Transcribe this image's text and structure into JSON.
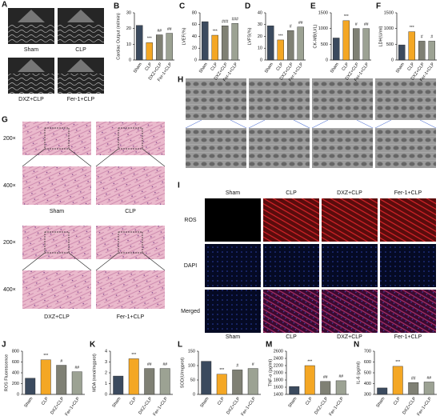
{
  "panels": {
    "A": {
      "label": "A",
      "captions": [
        "Sham",
        "CLP",
        "DXZ+CLP",
        "Fer-1+CLP"
      ]
    },
    "G": {
      "label": "G",
      "magnifications": [
        "200×",
        "400×"
      ],
      "captions": [
        "Sham",
        "CLP",
        "DXZ+CLP",
        "Fer-1+CLP"
      ]
    },
    "H": {
      "label": "H"
    },
    "I": {
      "label": "I",
      "columns": [
        "Sham",
        "CLP",
        "DXZ+CLP",
        "Fer-1+CLP"
      ],
      "rows": [
        "ROS",
        "DAPI",
        "Merged"
      ],
      "captions": [
        "Sham",
        "CLP",
        "DXZ+CLP",
        "Fer-1+CLP"
      ]
    }
  },
  "chart_data": [
    {
      "type": "bar",
      "label": "B",
      "ylabel": "Cardiac Output (ml/min)",
      "categories": [
        "Sham",
        "CLP",
        "DXZ+CLP",
        "Fer-1+CLP"
      ],
      "values": [
        22,
        11,
        16,
        17
      ],
      "annotations": [
        null,
        "***",
        "##",
        "##"
      ],
      "colors": [
        "#3b4a5e",
        "#f4a724",
        "#7f8074",
        "#9ca293"
      ],
      "ylim": [
        0,
        30
      ],
      "yticks": [
        0,
        10,
        20,
        30
      ]
    },
    {
      "type": "bar",
      "label": "C",
      "ylabel": "LVEF(%)",
      "categories": [
        "Sham",
        "CLP",
        "DXZ+CLP",
        "Fer-1+CLP"
      ],
      "values": [
        65,
        42,
        58,
        62
      ],
      "annotations": [
        null,
        "***",
        "###",
        "###"
      ],
      "colors": [
        "#3b4a5e",
        "#f4a724",
        "#7f8074",
        "#9ca293"
      ],
      "ylim": [
        0,
        80
      ],
      "yticks": [
        0,
        20,
        40,
        60,
        80
      ]
    },
    {
      "type": "bar",
      "label": "D",
      "ylabel": "LVFS(%)",
      "categories": [
        "Sham",
        "CLP",
        "DXZ+CLP",
        "Fer-1+CLP"
      ],
      "values": [
        29,
        17,
        25,
        28
      ],
      "annotations": [
        null,
        "***",
        "#",
        "##"
      ],
      "colors": [
        "#3b4a5e",
        "#f4a724",
        "#7f8074",
        "#9ca293"
      ],
      "ylim": [
        0,
        40
      ],
      "yticks": [
        0,
        10,
        20,
        30,
        40
      ]
    },
    {
      "type": "bar",
      "label": "E",
      "ylabel": "CK-MB(U/L)",
      "categories": [
        "Sham",
        "CLP",
        "DXZ+CLP",
        "Fer-1+CLP"
      ],
      "values": [
        700,
        1250,
        1000,
        1000
      ],
      "annotations": [
        null,
        "***",
        "#",
        "##"
      ],
      "colors": [
        "#3b4a5e",
        "#f4a724",
        "#7f8074",
        "#9ca293"
      ],
      "ylim": [
        0,
        1500
      ],
      "yticks": [
        0,
        500,
        1000,
        1500
      ]
    },
    {
      "type": "bar",
      "label": "F",
      "ylabel": "LDH(U/ml)",
      "categories": [
        "Sham",
        "CLP",
        "DXZ+CLP",
        "Fer-1+CLP"
      ],
      "values": [
        480,
        900,
        600,
        600
      ],
      "annotations": [
        null,
        "***",
        "#",
        "#"
      ],
      "colors": [
        "#3b4a5e",
        "#f4a724",
        "#7f8074",
        "#9ca293"
      ],
      "ylim": [
        0,
        1500
      ],
      "yticks": [
        0,
        500,
        1000,
        1500
      ]
    },
    {
      "type": "bar",
      "label": "J",
      "ylabel": "ROS Fluorescence",
      "categories": [
        "Sham",
        "CLP",
        "DXZ+CLP",
        "Fer-1+CLP"
      ],
      "values": [
        300,
        640,
        540,
        420
      ],
      "annotations": [
        null,
        "***",
        "#",
        "##"
      ],
      "colors": [
        "#3b4a5e",
        "#f4a724",
        "#7f8074",
        "#9ca293"
      ],
      "ylim": [
        0,
        800
      ],
      "yticks": [
        0,
        200,
        400,
        600,
        800
      ]
    },
    {
      "type": "bar",
      "label": "K",
      "ylabel": "MDA (nmol/mgprot)",
      "categories": [
        "Sham",
        "CLP",
        "DXZ+CLP",
        "Fer-1+CLP"
      ],
      "values": [
        1.7,
        3.3,
        2.4,
        2.4
      ],
      "annotations": [
        null,
        "***",
        "##",
        "##"
      ],
      "colors": [
        "#3b4a5e",
        "#f4a724",
        "#7f8074",
        "#9ca293"
      ],
      "ylim": [
        0,
        4
      ],
      "yticks": [
        0,
        1,
        2,
        3,
        4
      ]
    },
    {
      "type": "bar",
      "label": "L",
      "ylabel": "SOD(U/mgprot)",
      "categories": [
        "Sham",
        "CLP",
        "DXZ+CLP",
        "Fer-1+CLP"
      ],
      "values": [
        115,
        70,
        85,
        90
      ],
      "annotations": [
        null,
        "***",
        "#",
        "#"
      ],
      "colors": [
        "#3b4a5e",
        "#f4a724",
        "#7f8074",
        "#9ca293"
      ],
      "ylim": [
        0,
        150
      ],
      "yticks": [
        0,
        50,
        100,
        150
      ]
    },
    {
      "type": "bar",
      "label": "M",
      "ylabel": "TNF-α (pg/ml)",
      "categories": [
        "Sham",
        "CLP",
        "DXZ+CLP",
        "Fer-1+CLP"
      ],
      "values": [
        1620,
        2200,
        1760,
        1780
      ],
      "annotations": [
        null,
        "***",
        "##",
        "##"
      ],
      "colors": [
        "#3b4a5e",
        "#f4a724",
        "#7f8074",
        "#9ca293"
      ],
      "ylim": [
        1400,
        2600
      ],
      "yticks": [
        1400,
        1600,
        1800,
        2000,
        2200,
        2400,
        2600
      ]
    },
    {
      "type": "bar",
      "label": "N",
      "ylabel": "IL-6 (pg/ml)",
      "categories": [
        "Sham",
        "CLP",
        "DXZ+CLP",
        "Fer-1+CLP"
      ],
      "values": [
        360,
        560,
        410,
        415
      ],
      "annotations": [
        null,
        "***",
        "##",
        "##"
      ],
      "colors": [
        "#3b4a5e",
        "#f4a724",
        "#7f8074",
        "#9ca293"
      ],
      "ylim": [
        300,
        700
      ],
      "yticks": [
        300,
        400,
        500,
        600,
        700
      ]
    }
  ]
}
